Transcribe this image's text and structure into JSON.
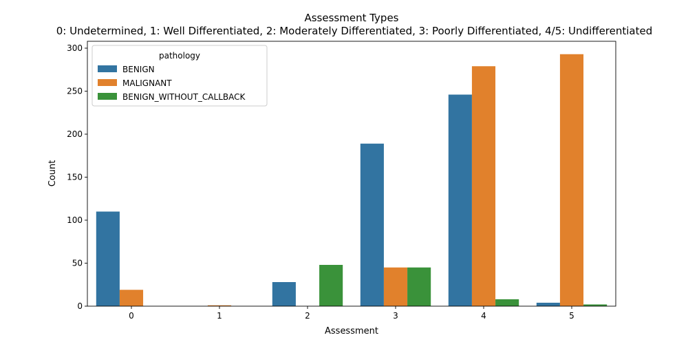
{
  "chart_data": {
    "type": "bar",
    "title": "Assessment Types",
    "subtitle": "0: Undetermined, 1: Well Differentiated, 2: Moderately Differentiated, 3: Poorly Differentiated, 4/5: Undifferentiated",
    "xlabel": "Assessment",
    "ylabel": "Count",
    "categories": [
      "0",
      "1",
      "2",
      "3",
      "4",
      "5"
    ],
    "ylim": [
      0,
      308
    ],
    "yticks": [
      0,
      50,
      100,
      150,
      200,
      250,
      300
    ],
    "grid": false,
    "legend": {
      "title": "pathology",
      "placement": "top-left"
    },
    "series": [
      {
        "name": "BENIGN",
        "color": "#3274a1",
        "values": [
          110,
          0,
          28,
          189,
          246,
          4
        ]
      },
      {
        "name": "MALIGNANT",
        "color": "#e1812c",
        "values": [
          19,
          1,
          0,
          45,
          279,
          293
        ]
      },
      {
        "name": "BENIGN_WITHOUT_CALLBACK",
        "color": "#3a923a",
        "values": [
          0,
          0,
          48,
          45,
          8,
          2
        ]
      }
    ]
  }
}
